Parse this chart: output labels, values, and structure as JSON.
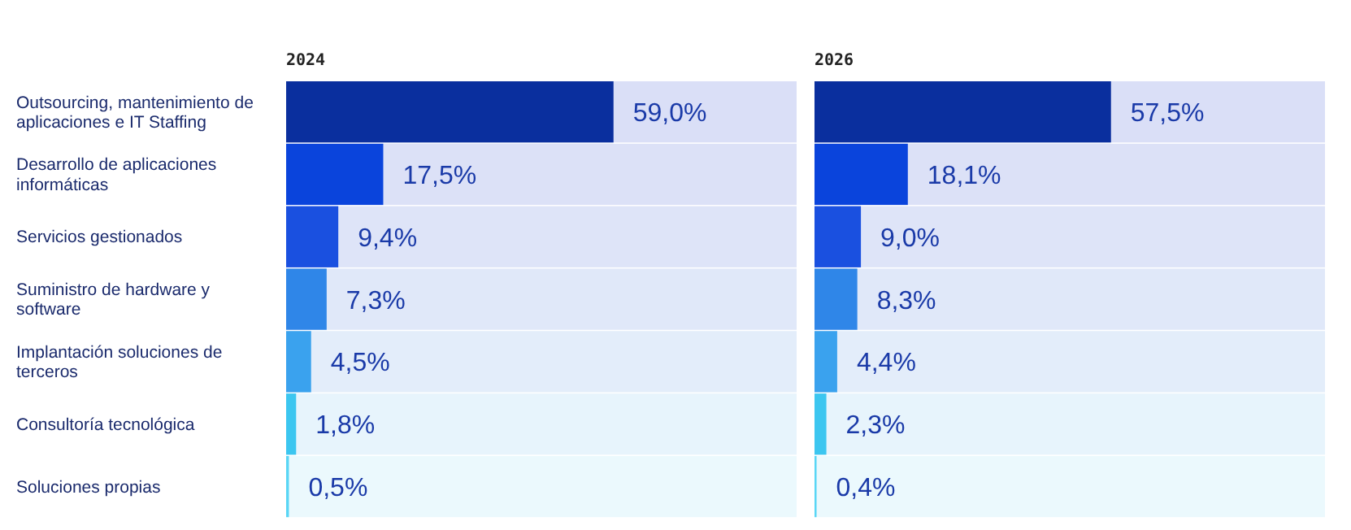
{
  "chart_data": [
    {
      "type": "bar",
      "orientation": "horizontal",
      "title": "2024",
      "categories": [
        "Outsourcing, mantenimiento de aplicaciones e IT Staffing",
        "Desarrollo de aplicaciones informáticas",
        "Servicios gestionados",
        "Suministro de hardware y software",
        "Implantación soluciones de terceros",
        "Consultoría tecnológica",
        "Soluciones propias"
      ],
      "values": [
        59.0,
        17.5,
        9.4,
        7.3,
        4.5,
        1.8,
        0.5
      ],
      "value_labels": [
        "59,0%",
        "17,5%",
        "9,4%",
        "7,3%",
        "4,5%",
        "1,8%",
        "0,5%"
      ],
      "colors": [
        "#0a2f9e",
        "#0a44dc",
        "#1a50e0",
        "#2f86e8",
        "#3aa2ee",
        "#3cc6f0",
        "#5ad6f5"
      ],
      "xlim": [
        0,
        92
      ],
      "tick_labels": "y"
    },
    {
      "type": "bar",
      "orientation": "horizontal",
      "title": "2026",
      "categories": [
        null,
        null,
        null,
        null,
        null,
        null,
        null
      ],
      "values": [
        57.5,
        18.1,
        9.0,
        8.3,
        4.4,
        2.3,
        0.4
      ],
      "value_labels": [
        "57,5%",
        "18,1%",
        "9,0%",
        "8,3%",
        "4,4%",
        "2,3%",
        "0,4%"
      ],
      "colors": [
        "#0a2f9e",
        "#0a44dc",
        "#1a50e0",
        "#2f86e8",
        "#3aa2ee",
        "#3cc6f0",
        "#5ad6f5"
      ],
      "xlim": [
        0,
        99
      ],
      "tick_labels": false
    }
  ]
}
